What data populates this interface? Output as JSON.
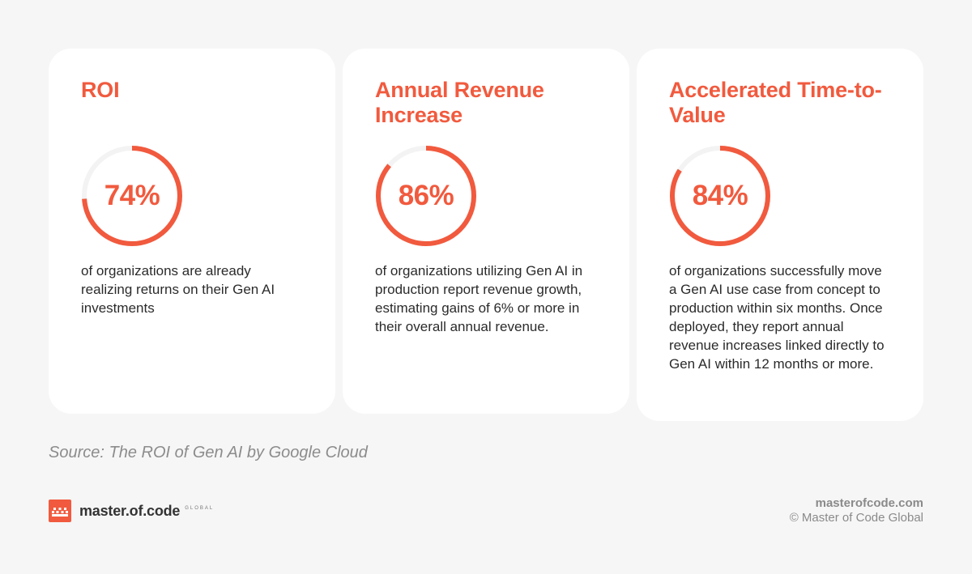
{
  "stats": [
    {
      "title": "ROI",
      "value_label": "74%",
      "percent": 74,
      "description": "of organizations are already realizing returns on their Gen AI investments"
    },
    {
      "title": "Annual Revenue Increase",
      "value_label": "86%",
      "percent": 86,
      "description": "of organizations utilizing Gen AI in production report revenue growth, estimating gains of 6% or more in their overall annual revenue."
    },
    {
      "title": "Accelerated Time-to-Value",
      "value_label": "84%",
      "percent": 84,
      "description": "of organizations successfully move a Gen AI use case from concept to production within six months. Once deployed, they report annual revenue increases linked directly to Gen AI within 12 months or more."
    }
  ],
  "source": "Source: The ROI of Gen AI by Google Cloud",
  "brand": {
    "name": "master.of.code",
    "tagline": "GLOBAL"
  },
  "footer": {
    "website": "masterofcode.com",
    "copyright": "© Master of Code Global"
  },
  "colors": {
    "accent": "#f15a3e",
    "track": "#f3f3f3",
    "background": "#f6f6f6",
    "card": "#ffffff"
  }
}
